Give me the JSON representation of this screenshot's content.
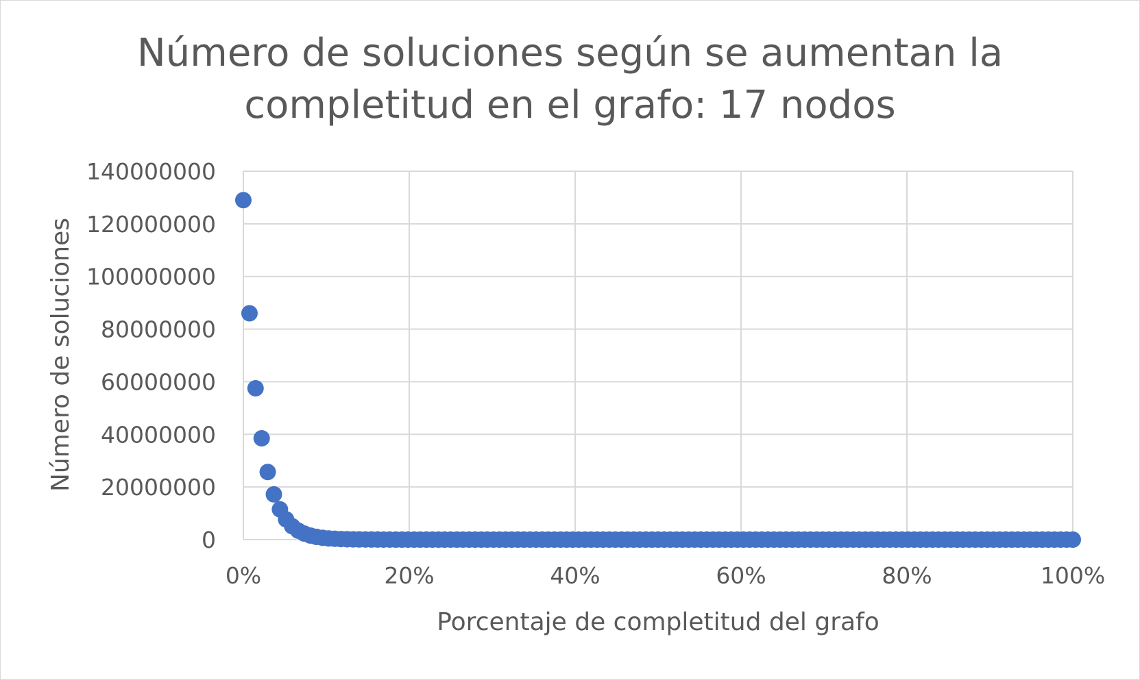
{
  "chart_data": {
    "type": "scatter",
    "title_line1": "Número de soluciones según se aumentan la",
    "title_line2": "completitud en el grafo: 17 nodos",
    "xlabel": "Porcentaje de completitud del grafo",
    "ylabel": "Número de soluciones",
    "xlim": [
      0,
      1
    ],
    "ylim": [
      0,
      140000000
    ],
    "x_ticks": [
      0,
      0.2,
      0.4,
      0.6,
      0.8,
      1.0
    ],
    "x_tick_labels": [
      "0%",
      "20%",
      "40%",
      "60%",
      "80%",
      "100%"
    ],
    "y_ticks": [
      0,
      20000000,
      40000000,
      60000000,
      80000000,
      100000000,
      120000000,
      140000000
    ],
    "y_tick_labels": [
      "0",
      "20000000",
      "40000000",
      "60000000",
      "80000000",
      "100000000",
      "120000000",
      "140000000"
    ],
    "grid": true,
    "marker_color": "#4472c4",
    "series": [
      {
        "x": [
          0.0,
          0.0074,
          0.0147,
          0.0221,
          0.0294,
          0.0368,
          0.0441,
          0.0515,
          0.0588,
          0.0662,
          0.0735,
          0.0809,
          0.0882,
          0.0956,
          0.1029,
          0.1103,
          0.1176,
          0.125,
          0.1324,
          0.1397,
          0.1471,
          0.1544,
          0.1618,
          0.1691,
          0.1765,
          0.1838,
          0.1912,
          0.1985,
          0.2059,
          0.2132,
          0.2206,
          0.2279,
          0.2353,
          0.2426,
          0.25,
          0.2574,
          0.2647,
          0.2721,
          0.2794,
          0.2868,
          0.2941,
          0.3015,
          0.3088,
          0.3162,
          0.3235,
          0.3309,
          0.3382,
          0.3456,
          0.3529,
          0.3603,
          0.3676,
          0.375,
          0.3824,
          0.3897,
          0.3971,
          0.4044,
          0.4118,
          0.4191,
          0.4265,
          0.4338,
          0.4412,
          0.4485,
          0.4559,
          0.4632,
          0.4706,
          0.4779,
          0.4853,
          0.4926,
          0.5,
          0.5074,
          0.5147,
          0.5221,
          0.5294,
          0.5368,
          0.5441,
          0.5515,
          0.5588,
          0.5662,
          0.5735,
          0.5809,
          0.5882,
          0.5956,
          0.6029,
          0.6103,
          0.6176,
          0.625,
          0.6324,
          0.6397,
          0.6471,
          0.6544,
          0.6618,
          0.6691,
          0.6765,
          0.6838,
          0.6912,
          0.6985,
          0.7059,
          0.7132,
          0.7206,
          0.7279,
          0.7353,
          0.7426,
          0.75,
          0.7574,
          0.7647,
          0.7721,
          0.7794,
          0.7868,
          0.7941,
          0.8015,
          0.8088,
          0.8162,
          0.8235,
          0.8309,
          0.8382,
          0.8456,
          0.8529,
          0.8603,
          0.8676,
          0.875,
          0.8824,
          0.8897,
          0.8971,
          0.9044,
          0.9118,
          0.9191,
          0.9265,
          0.9338,
          0.9412,
          0.9485,
          0.9559,
          0.9632,
          0.9706,
          0.9779,
          0.9853,
          0.9926,
          1.0
        ],
        "y": [
          129000000,
          86000000,
          57500000,
          38500000,
          25700000,
          17200000,
          11500000,
          7700000,
          5100000,
          3400000,
          2300000,
          1540000,
          1030000,
          690000,
          460000,
          310000,
          206000,
          138000,
          92000,
          61000,
          41000,
          27000,
          18000,
          12000,
          8000,
          5400,
          3600,
          2400,
          1600,
          1070,
          710,
          480,
          320,
          210,
          140,
          94,
          63,
          42,
          28,
          19,
          12,
          8,
          5,
          4,
          2,
          2,
          1,
          1,
          1,
          1,
          1,
          1,
          1,
          1,
          1,
          1,
          1,
          1,
          1,
          1,
          1,
          1,
          1,
          1,
          1,
          1,
          1,
          1,
          1,
          1,
          1,
          1,
          1,
          1,
          1,
          1,
          1,
          1,
          1,
          1,
          1,
          1,
          1,
          1,
          1,
          1,
          1,
          1,
          1,
          1,
          1,
          1,
          1,
          1,
          1,
          1,
          1,
          1,
          1,
          1,
          1,
          1,
          1,
          1,
          1,
          1,
          1,
          1,
          1,
          1,
          1,
          1,
          1,
          1,
          1,
          1,
          1,
          1,
          1,
          1,
          1,
          1,
          1,
          1,
          1,
          1,
          1,
          1,
          1,
          1,
          1,
          1,
          1,
          1,
          1,
          1,
          1
        ]
      }
    ]
  }
}
